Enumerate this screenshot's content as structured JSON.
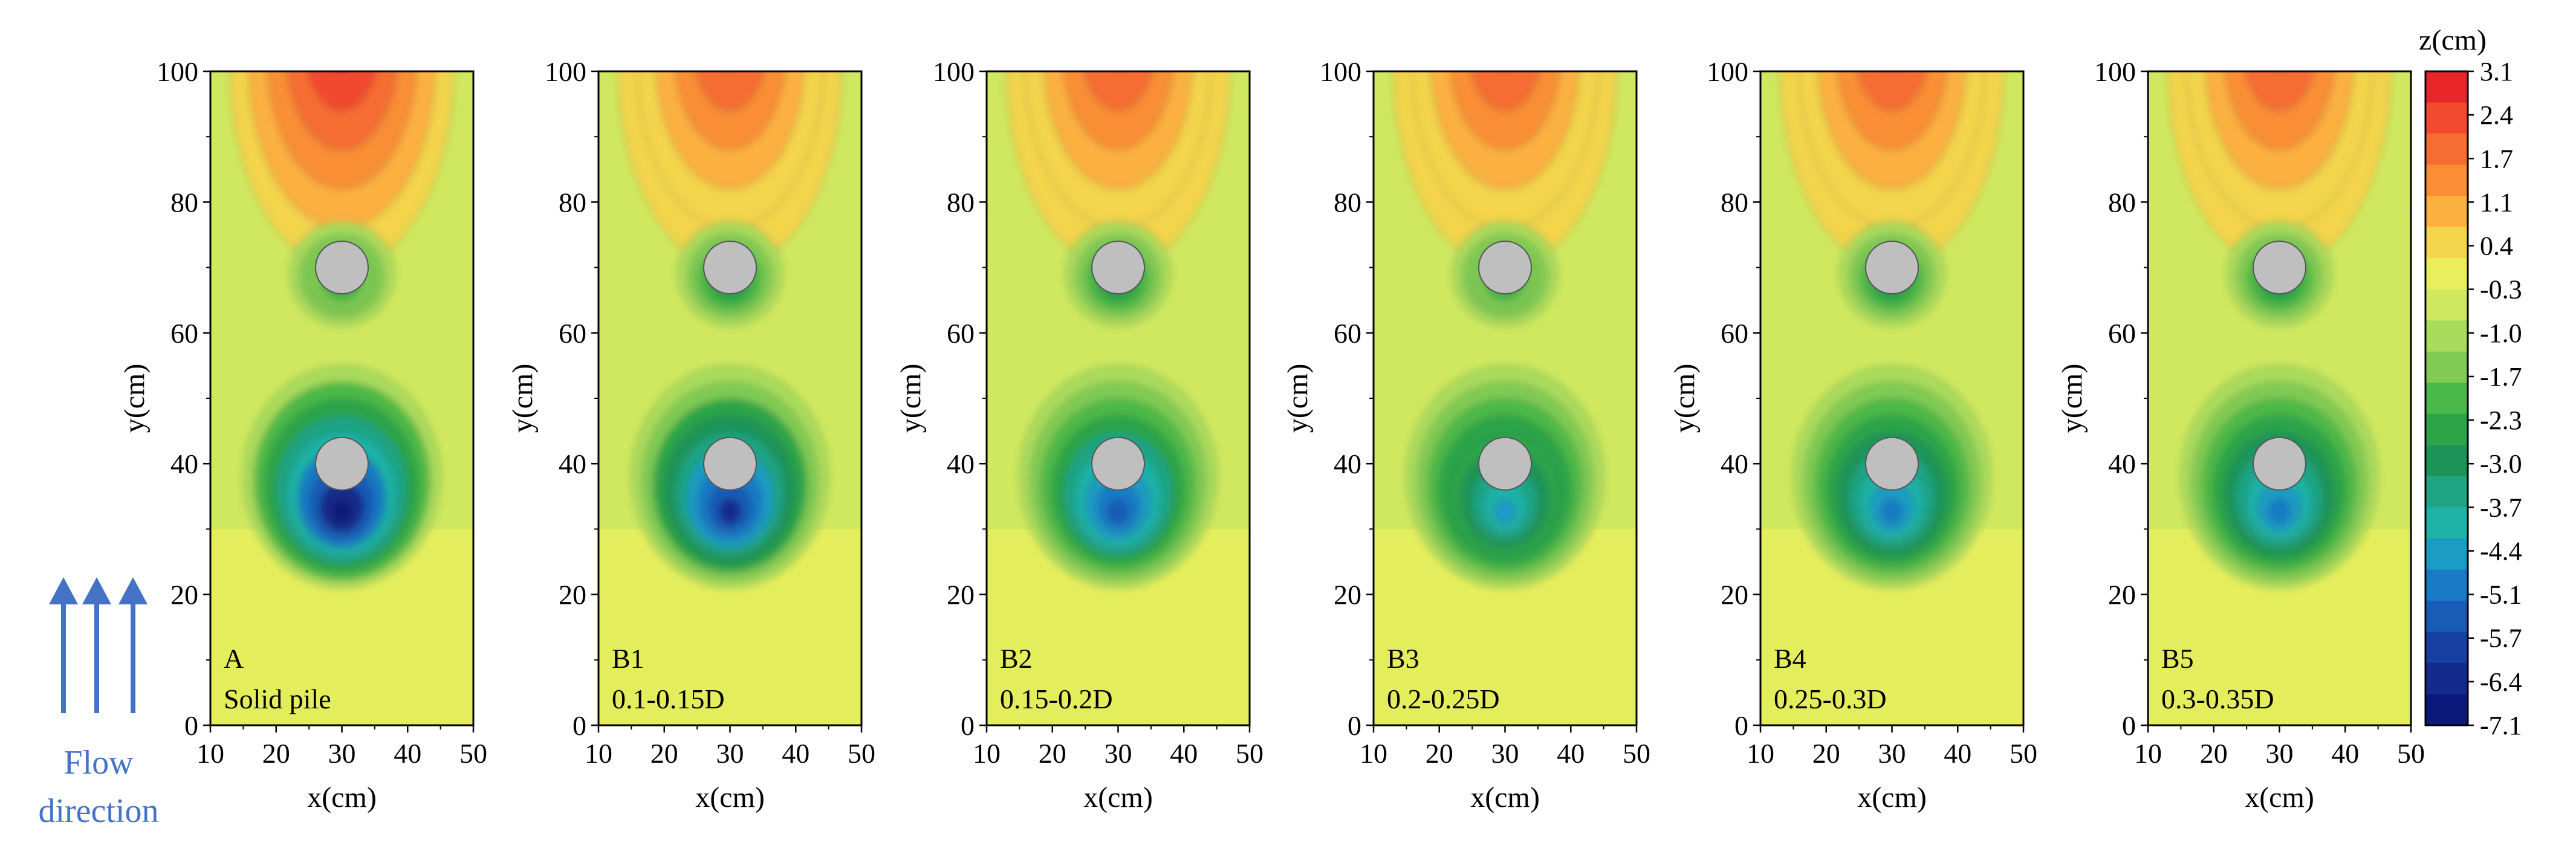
{
  "chart_data": {
    "type": "heatmap",
    "description_of_quantity": "scour/deposition depth",
    "colorbar": {
      "title": "z(cm)",
      "levels": [
        "3.1",
        "2.4",
        "1.7",
        "1.1",
        "0.4",
        "-0.3",
        "-1.0",
        "-1.7",
        "-2.3",
        "-3.0",
        "-3.7",
        "-4.4",
        "-5.1",
        "-5.7",
        "-6.4",
        "-7.1"
      ],
      "colors": [
        "#e8262a",
        "#f14a2e",
        "#f66d32",
        "#f98e36",
        "#fbb03f",
        "#f3d44c",
        "#e9ef5c",
        "#cfe85f",
        "#a9db5c",
        "#7fcb53",
        "#4bb947",
        "#2ba548",
        "#1e9558",
        "#1fa584",
        "#1fb3a7",
        "#1a9cc5",
        "#197bc5",
        "#185cb8",
        "#1740a4",
        "#132a8c",
        "#0b1a7a"
      ],
      "range": [
        -7.1,
        3.1
      ]
    },
    "axes": {
      "xlabel": "x(cm)",
      "ylabel": "y(cm)",
      "xlim": [
        10,
        50
      ],
      "ylim": [
        0,
        100
      ],
      "xticks": [
        "10",
        "20",
        "30",
        "40",
        "50"
      ],
      "yticks": [
        "0",
        "20",
        "40",
        "60",
        "80",
        "100"
      ]
    },
    "piles": [
      {
        "x": 30,
        "y": 70,
        "diameter": 8
      },
      {
        "x": 30,
        "y": 40,
        "diameter": 8
      }
    ],
    "panels": [
      {
        "id": "A",
        "caption": "Solid pile",
        "max_deposition": 3.1,
        "max_scour_downstream_pile": -2.3,
        "max_scour_upstream_pile": -7.1
      },
      {
        "id": "B1",
        "caption": "0.1-0.15D",
        "max_deposition": 2.4,
        "max_scour_downstream_pile": -3.0,
        "max_scour_upstream_pile": -6.4
      },
      {
        "id": "B2",
        "caption": "0.15-0.2D",
        "max_deposition": 2.4,
        "max_scour_downstream_pile": -3.0,
        "max_scour_upstream_pile": -5.7
      },
      {
        "id": "B3",
        "caption": "0.2-0.25D",
        "max_deposition": 2.4,
        "max_scour_downstream_pile": -2.3,
        "max_scour_upstream_pile": -4.4
      },
      {
        "id": "B4",
        "caption": "0.25-0.3D",
        "max_deposition": 2.4,
        "max_scour_downstream_pile": -3.0,
        "max_scour_upstream_pile": -5.1
      },
      {
        "id": "B5",
        "caption": "0.3-0.35D",
        "max_deposition": 2.4,
        "max_scour_downstream_pile": -3.0,
        "max_scour_upstream_pile": -5.1
      }
    ],
    "flow_label": [
      "Flow",
      "direction"
    ],
    "flow_color": "#4472c4"
  }
}
